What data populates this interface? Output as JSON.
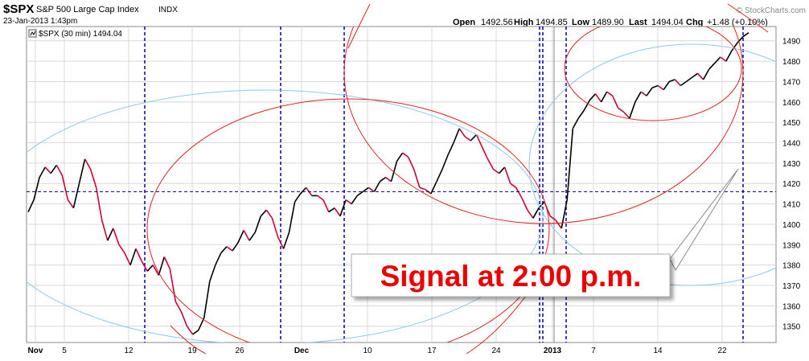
{
  "header": {
    "ticker": "$SPX",
    "name": "S&P 500 Large Cap Index",
    "exchange": "INDX",
    "datetime": "23-Jan-2013 1:43pm",
    "watermark": "© StockCharts.com",
    "open_label": "Open",
    "open_value": "1492.56",
    "high_label": "High",
    "high_value": "1494.85",
    "low_label": "Low",
    "low_value": "1489.90",
    "last_label": "Last",
    "last_value": "1494.04",
    "chg_label": "Chg",
    "chg_value": "+1.48 (+0.10%)",
    "legend_text": "$SPX (30 min) 1494.04"
  },
  "callout": {
    "text": "Signal at 2:00 p.m."
  },
  "colors": {
    "frame": "#8a8a8a",
    "grid": "#d8d8d8",
    "price_up": "#000000",
    "price_down": "#cc0033",
    "vlines": "#0000aa",
    "hline": "#000080",
    "red_arc": "#dd2222",
    "blue_arc": "#8ec8ea",
    "callout_text": "#ee0000"
  },
  "chart_data": {
    "type": "line",
    "title": "",
    "xlabel": "",
    "ylabel": "",
    "ylim": [
      1342,
      1497
    ],
    "y_ticks": [
      1350,
      1360,
      1370,
      1380,
      1390,
      1400,
      1410,
      1420,
      1430,
      1440,
      1450,
      1460,
      1470,
      1480,
      1490
    ],
    "x_ticks": [
      "Nov",
      "5",
      "12",
      "19",
      "26",
      "Dec",
      "10",
      "17",
      "24",
      "2013",
      "7",
      "14",
      "22"
    ],
    "x_bold_ticks": [
      "Nov",
      "Dec",
      "2013"
    ],
    "horizontal_line": 1416,
    "series": [
      {
        "name": "$SPX (30 min)",
        "values": [
          1406,
          1412,
          1423,
          1428,
          1425,
          1429,
          1424,
          1412,
          1408,
          1420,
          1432,
          1427,
          1418,
          1402,
          1392,
          1398,
          1390,
          1386,
          1380,
          1388,
          1382,
          1377,
          1380,
          1375,
          1384,
          1378,
          1362,
          1357,
          1350,
          1346,
          1348,
          1354,
          1372,
          1380,
          1386,
          1389,
          1387,
          1391,
          1397,
          1392,
          1396,
          1404,
          1407,
          1403,
          1394,
          1388,
          1396,
          1411,
          1415,
          1418,
          1414,
          1414,
          1412,
          1406,
          1408,
          1404,
          1412,
          1410,
          1414,
          1416,
          1418,
          1416,
          1421,
          1423,
          1421,
          1431,
          1435,
          1433,
          1427,
          1418,
          1417,
          1415,
          1421,
          1427,
          1434,
          1440,
          1447,
          1443,
          1441,
          1444,
          1438,
          1432,
          1427,
          1425,
          1428,
          1420,
          1418,
          1413,
          1407,
          1403,
          1408,
          1411,
          1404,
          1402,
          1398,
          1412,
          1447,
          1452,
          1456,
          1461,
          1464,
          1460,
          1465,
          1463,
          1457,
          1455,
          1452,
          1460,
          1465,
          1463,
          1467,
          1468,
          1466,
          1470,
          1471,
          1468,
          1470,
          1472,
          1474,
          1471,
          1476,
          1479,
          1482,
          1480,
          1485,
          1489,
          1492,
          1494
        ]
      }
    ]
  }
}
